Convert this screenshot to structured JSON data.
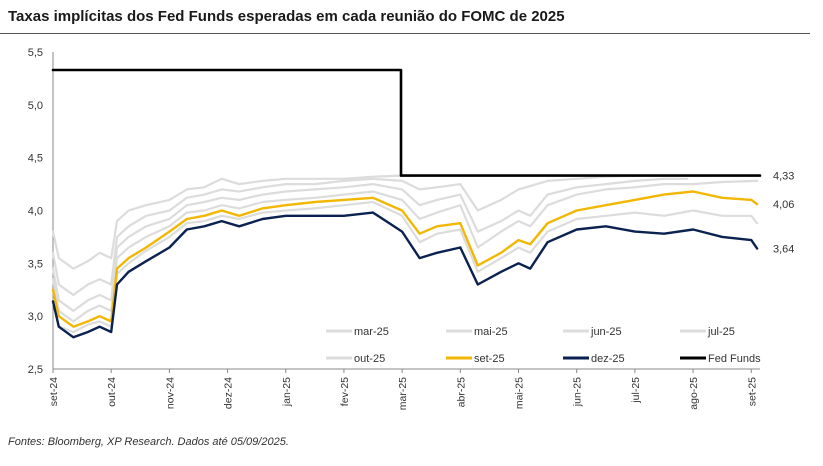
{
  "title": "Taxas implícitas dos Fed Funds esperadas em cada reunião do FOMC de 2025",
  "source": "Fontes: Bloomberg, XP Research. Dados até 05/09/2025.",
  "chart_data": {
    "type": "line",
    "title": "Taxas implícitas dos Fed Funds esperadas em cada reunião do FOMC de 2025",
    "xlabel": "",
    "ylabel": "",
    "ylim": [
      2.5,
      5.5
    ],
    "yticks": [
      "2,5",
      "3,0",
      "3,5",
      "4,0",
      "4,5",
      "5,0",
      "5,5"
    ],
    "ytick_values": [
      2.5,
      3.0,
      3.5,
      4.0,
      4.5,
      5.0,
      5.5
    ],
    "xticks": [
      "set-24",
      "out-24",
      "nov-24",
      "dez-24",
      "jan-25",
      "fev-25",
      "mar-25",
      "abr-25",
      "mai-25",
      "jun-25",
      "jul-25",
      "ago-25",
      "set-25"
    ],
    "xlim": [
      0,
      12.15
    ],
    "grid": false,
    "legend_position": "bottom",
    "end_labels": [
      {
        "value": 4.33,
        "text": "4,33"
      },
      {
        "value": 4.06,
        "text": "4,06"
      },
      {
        "value": 3.64,
        "text": "3,64"
      }
    ],
    "series": [
      {
        "name": "mar-25",
        "color": "#dcdcdc",
        "width": 2.2,
        "points": [
          [
            0,
            3.8
          ],
          [
            0.1,
            3.55
          ],
          [
            0.35,
            3.45
          ],
          [
            0.6,
            3.52
          ],
          [
            0.8,
            3.6
          ],
          [
            1.0,
            3.55
          ],
          [
            1.1,
            3.9
          ],
          [
            1.3,
            4.0
          ],
          [
            1.6,
            4.05
          ],
          [
            2.0,
            4.1
          ],
          [
            2.3,
            4.2
          ],
          [
            2.6,
            4.22
          ],
          [
            2.9,
            4.3
          ],
          [
            3.2,
            4.25
          ],
          [
            3.6,
            4.28
          ],
          [
            4.0,
            4.3
          ],
          [
            4.5,
            4.3
          ],
          [
            5.0,
            4.3
          ],
          [
            5.5,
            4.32
          ],
          [
            6.0,
            4.33
          ],
          [
            6.2,
            4.33
          ]
        ]
      },
      {
        "name": "mai-25",
        "color": "#dcdcdc",
        "width": 2.2,
        "points": [
          [
            0,
            3.6
          ],
          [
            0.1,
            3.3
          ],
          [
            0.35,
            3.2
          ],
          [
            0.6,
            3.3
          ],
          [
            0.8,
            3.35
          ],
          [
            1.0,
            3.3
          ],
          [
            1.1,
            3.75
          ],
          [
            1.3,
            3.85
          ],
          [
            1.6,
            3.95
          ],
          [
            2.0,
            4.0
          ],
          [
            2.3,
            4.12
          ],
          [
            2.6,
            4.15
          ],
          [
            2.9,
            4.2
          ],
          [
            3.2,
            4.18
          ],
          [
            3.6,
            4.22
          ],
          [
            4.0,
            4.25
          ],
          [
            4.5,
            4.25
          ],
          [
            5.0,
            4.28
          ],
          [
            5.5,
            4.3
          ],
          [
            6.0,
            4.28
          ],
          [
            6.3,
            4.2
          ],
          [
            6.6,
            4.22
          ],
          [
            7.0,
            4.25
          ],
          [
            7.3,
            4.0
          ],
          [
            7.7,
            4.1
          ],
          [
            8.0,
            4.2
          ],
          [
            8.5,
            4.28
          ],
          [
            9.0,
            4.3
          ],
          [
            9.5,
            4.32
          ],
          [
            10.0,
            4.33
          ],
          [
            10.1,
            4.33
          ]
        ]
      },
      {
        "name": "jun-25",
        "color": "#dcdcdc",
        "width": 2.2,
        "points": [
          [
            0,
            3.45
          ],
          [
            0.1,
            3.15
          ],
          [
            0.35,
            3.05
          ],
          [
            0.6,
            3.15
          ],
          [
            0.8,
            3.2
          ],
          [
            1.0,
            3.15
          ],
          [
            1.1,
            3.65
          ],
          [
            1.3,
            3.75
          ],
          [
            1.6,
            3.85
          ],
          [
            2.0,
            3.92
          ],
          [
            2.3,
            4.05
          ],
          [
            2.6,
            4.08
          ],
          [
            2.9,
            4.12
          ],
          [
            3.2,
            4.1
          ],
          [
            3.6,
            4.15
          ],
          [
            4.0,
            4.18
          ],
          [
            4.5,
            4.2
          ],
          [
            5.0,
            4.22
          ],
          [
            5.5,
            4.25
          ],
          [
            6.0,
            4.2
          ],
          [
            6.3,
            4.05
          ],
          [
            6.6,
            4.1
          ],
          [
            7.0,
            4.15
          ],
          [
            7.3,
            3.8
          ],
          [
            7.7,
            3.9
          ],
          [
            8.0,
            4.0
          ],
          [
            8.2,
            3.95
          ],
          [
            8.5,
            4.15
          ],
          [
            9.0,
            4.22
          ],
          [
            9.5,
            4.25
          ],
          [
            10.0,
            4.28
          ],
          [
            10.5,
            4.3
          ],
          [
            10.9,
            4.3
          ]
        ]
      },
      {
        "name": "jul-25",
        "color": "#dcdcdc",
        "width": 2.2,
        "points": [
          [
            0,
            3.35
          ],
          [
            0.1,
            3.05
          ],
          [
            0.35,
            2.95
          ],
          [
            0.6,
            3.05
          ],
          [
            0.8,
            3.1
          ],
          [
            1.0,
            3.05
          ],
          [
            1.1,
            3.55
          ],
          [
            1.3,
            3.65
          ],
          [
            1.6,
            3.75
          ],
          [
            2.0,
            3.85
          ],
          [
            2.3,
            3.98
          ],
          [
            2.6,
            4.0
          ],
          [
            2.9,
            4.05
          ],
          [
            3.2,
            4.02
          ],
          [
            3.6,
            4.08
          ],
          [
            4.0,
            4.1
          ],
          [
            4.5,
            4.12
          ],
          [
            5.0,
            4.15
          ],
          [
            5.5,
            4.18
          ],
          [
            6.0,
            4.1
          ],
          [
            6.3,
            3.92
          ],
          [
            6.6,
            3.98
          ],
          [
            7.0,
            4.05
          ],
          [
            7.3,
            3.65
          ],
          [
            7.7,
            3.8
          ],
          [
            8.0,
            3.9
          ],
          [
            8.2,
            3.85
          ],
          [
            8.5,
            4.05
          ],
          [
            9.0,
            4.15
          ],
          [
            9.5,
            4.2
          ],
          [
            10.0,
            4.22
          ],
          [
            10.5,
            4.25
          ],
          [
            11.0,
            4.25
          ],
          [
            11.5,
            4.27
          ],
          [
            12.1,
            4.28
          ]
        ]
      },
      {
        "name": "out-25",
        "color": "#dcdcdc",
        "width": 2.2,
        "points": [
          [
            0,
            3.15
          ],
          [
            0.1,
            2.9
          ],
          [
            0.35,
            2.85
          ],
          [
            0.6,
            2.92
          ],
          [
            0.8,
            2.95
          ],
          [
            1.0,
            2.9
          ],
          [
            1.1,
            3.4
          ],
          [
            1.3,
            3.5
          ],
          [
            1.6,
            3.62
          ],
          [
            2.0,
            3.75
          ],
          [
            2.3,
            3.88
          ],
          [
            2.6,
            3.9
          ],
          [
            2.9,
            3.95
          ],
          [
            3.2,
            3.92
          ],
          [
            3.6,
            3.98
          ],
          [
            4.0,
            4.0
          ],
          [
            4.5,
            4.02
          ],
          [
            5.0,
            4.05
          ],
          [
            5.5,
            4.08
          ],
          [
            6.0,
            3.95
          ],
          [
            6.3,
            3.7
          ],
          [
            6.6,
            3.78
          ],
          [
            7.0,
            3.82
          ],
          [
            7.3,
            3.42
          ],
          [
            7.7,
            3.55
          ],
          [
            8.0,
            3.65
          ],
          [
            8.2,
            3.6
          ],
          [
            8.5,
            3.8
          ],
          [
            9.0,
            3.92
          ],
          [
            9.5,
            3.95
          ],
          [
            10.0,
            3.98
          ],
          [
            10.5,
            3.95
          ],
          [
            11.0,
            4.0
          ],
          [
            11.5,
            3.95
          ],
          [
            12.0,
            3.95
          ],
          [
            12.1,
            3.88
          ]
        ]
      },
      {
        "name": "set-25",
        "color": "#f2b705",
        "width": 2.4,
        "points": [
          [
            0,
            3.25
          ],
          [
            0.1,
            3.0
          ],
          [
            0.35,
            2.9
          ],
          [
            0.6,
            2.95
          ],
          [
            0.8,
            3.0
          ],
          [
            1.0,
            2.95
          ],
          [
            1.1,
            3.45
          ],
          [
            1.3,
            3.55
          ],
          [
            1.6,
            3.65
          ],
          [
            2.0,
            3.8
          ],
          [
            2.3,
            3.92
          ],
          [
            2.6,
            3.95
          ],
          [
            2.9,
            4.0
          ],
          [
            3.2,
            3.95
          ],
          [
            3.6,
            4.02
          ],
          [
            4.0,
            4.05
          ],
          [
            4.5,
            4.08
          ],
          [
            5.0,
            4.1
          ],
          [
            5.5,
            4.12
          ],
          [
            6.0,
            4.0
          ],
          [
            6.3,
            3.78
          ],
          [
            6.6,
            3.85
          ],
          [
            7.0,
            3.88
          ],
          [
            7.3,
            3.48
          ],
          [
            7.7,
            3.6
          ],
          [
            8.0,
            3.72
          ],
          [
            8.2,
            3.68
          ],
          [
            8.5,
            3.88
          ],
          [
            9.0,
            4.0
          ],
          [
            9.5,
            4.05
          ],
          [
            10.0,
            4.1
          ],
          [
            10.5,
            4.15
          ],
          [
            11.0,
            4.18
          ],
          [
            11.5,
            4.12
          ],
          [
            12.0,
            4.1
          ],
          [
            12.1,
            4.06
          ]
        ]
      },
      {
        "name": "dez-25",
        "color": "#0b2150",
        "width": 2.4,
        "points": [
          [
            0,
            3.14
          ],
          [
            0.1,
            2.9
          ],
          [
            0.35,
            2.8
          ],
          [
            0.6,
            2.85
          ],
          [
            0.8,
            2.9
          ],
          [
            1.0,
            2.85
          ],
          [
            1.1,
            3.3
          ],
          [
            1.3,
            3.42
          ],
          [
            1.6,
            3.52
          ],
          [
            2.0,
            3.65
          ],
          [
            2.3,
            3.82
          ],
          [
            2.6,
            3.85
          ],
          [
            2.9,
            3.9
          ],
          [
            3.2,
            3.85
          ],
          [
            3.6,
            3.92
          ],
          [
            4.0,
            3.95
          ],
          [
            4.5,
            3.95
          ],
          [
            5.0,
            3.95
          ],
          [
            5.5,
            3.98
          ],
          [
            6.0,
            3.8
          ],
          [
            6.3,
            3.55
          ],
          [
            6.6,
            3.6
          ],
          [
            7.0,
            3.65
          ],
          [
            7.3,
            3.3
          ],
          [
            7.7,
            3.42
          ],
          [
            8.0,
            3.5
          ],
          [
            8.2,
            3.45
          ],
          [
            8.5,
            3.7
          ],
          [
            9.0,
            3.82
          ],
          [
            9.5,
            3.85
          ],
          [
            10.0,
            3.8
          ],
          [
            10.5,
            3.78
          ],
          [
            11.0,
            3.82
          ],
          [
            11.5,
            3.75
          ],
          [
            12.0,
            3.72
          ],
          [
            12.1,
            3.64
          ]
        ]
      },
      {
        "name": "Fed Funds",
        "color": "#000000",
        "width": 2.6,
        "points": [
          [
            0,
            5.33
          ],
          [
            5.98,
            5.33
          ],
          [
            5.98,
            4.33
          ],
          [
            12.15,
            4.33
          ]
        ]
      }
    ]
  }
}
